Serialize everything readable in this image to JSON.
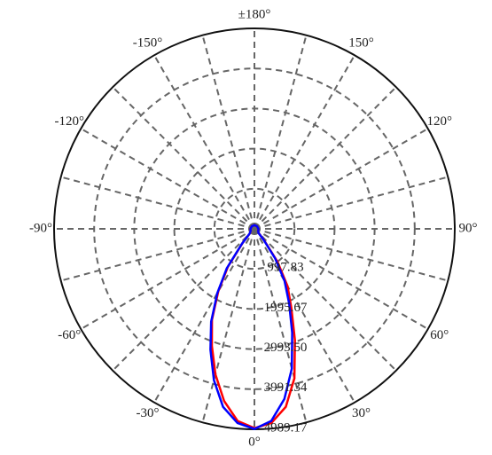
{
  "chart_data": {
    "type": "polar",
    "x": [
      -180,
      -135,
      -90,
      -60,
      -45,
      -40,
      -35,
      -30,
      -25,
      -20,
      -15,
      -10,
      -5,
      0,
      5,
      10,
      15,
      20,
      25,
      30,
      35,
      40,
      45,
      60,
      90,
      135,
      180
    ],
    "series": [
      {
        "color": "#ff0000",
        "values": [
          90,
          90,
          100,
          110,
          160,
          450,
          1150,
          1800,
          2500,
          3100,
          3750,
          4350,
          4800,
          4960,
          4850,
          4500,
          3850,
          2950,
          2180,
          1650,
          1000,
          380,
          150,
          110,
          100,
          90,
          90
        ]
      },
      {
        "color": "#0000ff",
        "values": [
          90,
          90,
          100,
          110,
          170,
          480,
          1200,
          1850,
          2550,
          3200,
          3900,
          4500,
          4850,
          4980,
          4800,
          4300,
          3600,
          2750,
          2050,
          1500,
          900,
          350,
          140,
          110,
          100,
          90,
          90
        ]
      }
    ],
    "rlim": [
      0,
      4989.17
    ],
    "rticks": [
      997.83,
      1995.67,
      {
        "value": 2993.5,
        "label": "2993.50"
      },
      3991.34,
      4989.17
    ],
    "xticks": [
      {
        "value": -150,
        "label": "-150°"
      },
      {
        "value": -120,
        "label": "-120°"
      },
      {
        "value": -90,
        "label": "-90°"
      },
      {
        "value": -60,
        "label": "-60°"
      },
      {
        "value": -30,
        "label": "-30°"
      },
      {
        "value": 0,
        "label": "0°"
      },
      {
        "value": 30,
        "label": "30°"
      },
      {
        "value": 60,
        "label": "60°"
      },
      {
        "value": 90,
        "label": "90°"
      },
      {
        "value": 120,
        "label": "120°"
      },
      {
        "value": 150,
        "label": "150°"
      },
      {
        "value": 180,
        "label": "±180°"
      }
    ],
    "grid": true
  }
}
